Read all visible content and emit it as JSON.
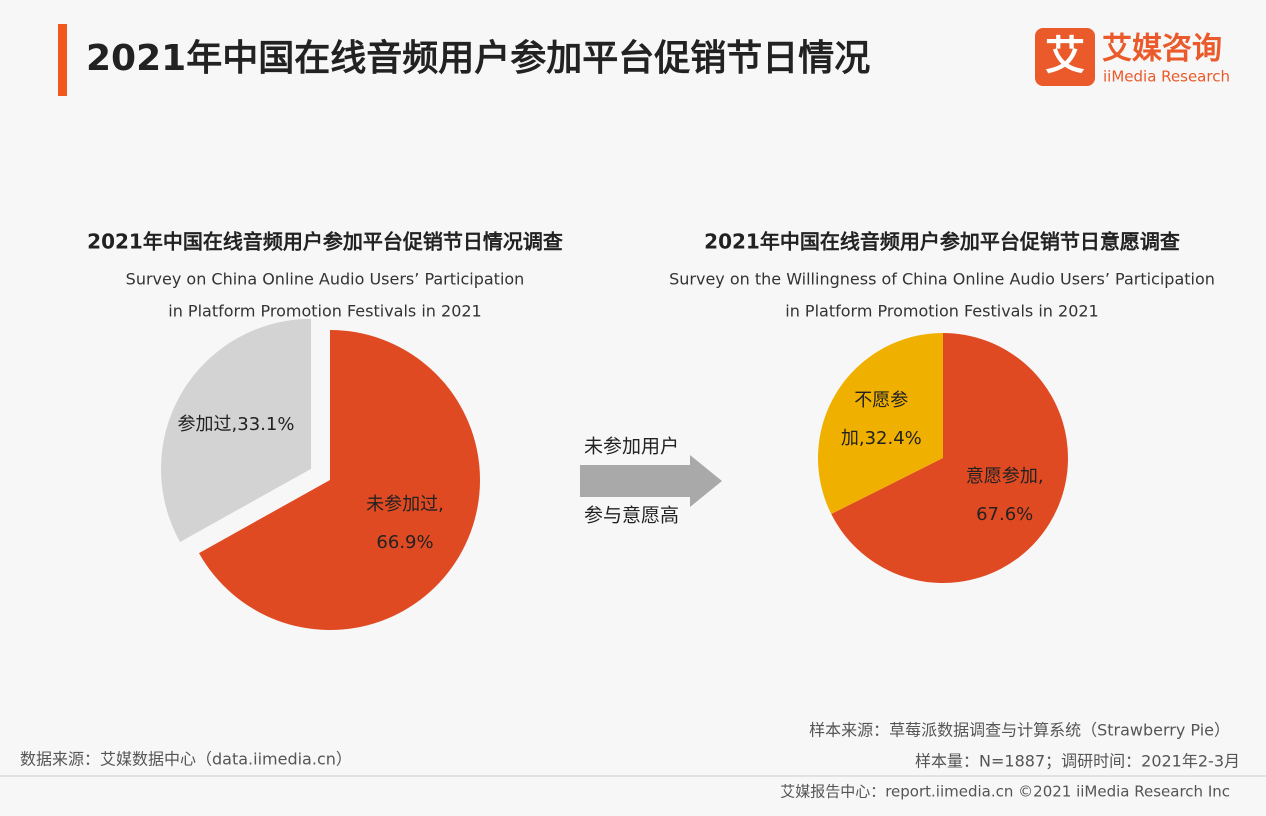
{
  "header": {
    "title": "2021年中国在线音频用户参加平台促销节日情况",
    "logo_mark": "艾",
    "logo_name": "艾媒咨询",
    "logo_sub": "iiMedia Research"
  },
  "chart_data": [
    {
      "type": "pie",
      "title": "2021年中国在线音频用户参加平台促销节日情况调查",
      "subtitle": [
        "Survey on China Online Audio Users’ Participation",
        "in Platform Promotion Festivals in 2021"
      ],
      "values": [
        33.1,
        66.9
      ],
      "value_labels": [
        [
          "参加过,33.1%"
        ],
        [
          "未参加过,",
          "66.9%"
        ]
      ],
      "colors": [
        "#d3d3d3",
        "#e04a22"
      ],
      "explode": [
        true,
        false
      ]
    },
    {
      "type": "pie",
      "title": "2021年中国在线音频用户参加平台促销节日意愿调查",
      "subtitle": [
        "Survey on the Willingness  of China Online Audio Users’ Participation",
        "in Platform Promotion Festivals in 2021"
      ],
      "values": [
        32.4,
        67.6
      ],
      "value_labels": [
        [
          "不愿参",
          "加,32.4%"
        ],
        [
          "意愿参加,",
          "67.6%"
        ]
      ],
      "colors": [
        "#f0b000",
        "#e04a22"
      ],
      "explode": [
        false,
        false
      ]
    }
  ],
  "arrow": {
    "top": "未参加用户",
    "bottom": "参与意愿高"
  },
  "footer": {
    "source_left": "数据来源：艾媒数据中心（data.iimedia.cn）",
    "source_right": "样本来源：草莓派数据调查与计算系统（Strawberry Pie）",
    "sample": "样本量：N=1887；调研时间：2021年2-3月",
    "copyright": "艾媒报告中心：report.iimedia.cn ©2021  iiMedia Research  Inc"
  }
}
